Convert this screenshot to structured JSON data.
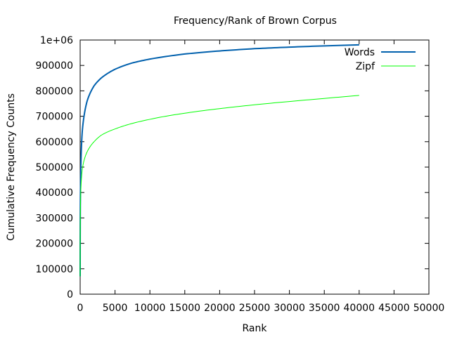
{
  "chart_data": {
    "type": "line",
    "title": "Frequency/Rank of Brown Corpus",
    "xlabel": "Rank",
    "ylabel": "Cumulative Frequency Counts",
    "xlim": [
      0,
      50000
    ],
    "ylim": [
      0,
      1000000
    ],
    "xticks": [
      "0",
      "5000",
      "10000",
      "15000",
      "20000",
      "25000",
      "30000",
      "35000",
      "40000",
      "45000",
      "50000"
    ],
    "yticks": [
      "0",
      "100000",
      "200000",
      "300000",
      "400000",
      "500000",
      "600000",
      "700000",
      "800000",
      "900000",
      "1e+06"
    ],
    "xtick_values": [
      0,
      5000,
      10000,
      15000,
      20000,
      25000,
      30000,
      35000,
      40000,
      45000,
      50000
    ],
    "ytick_values": [
      0,
      100000,
      200000,
      300000,
      400000,
      500000,
      600000,
      700000,
      800000,
      900000,
      1000000
    ],
    "grid": false,
    "legend_position": "top-right",
    "series": [
      {
        "name": "Words",
        "color": "#0060ad",
        "x": [
          1,
          10,
          50,
          100,
          200,
          300,
          500,
          1000,
          2000,
          3000,
          5000,
          7500,
          10000,
          15000,
          20000,
          25000,
          30000,
          35000,
          40000
        ],
        "y": [
          70000,
          250000,
          420000,
          500000,
          590000,
          640000,
          690000,
          760000,
          820000,
          850000,
          885000,
          910000,
          925000,
          945000,
          957000,
          966000,
          972000,
          977000,
          981000
        ]
      },
      {
        "name": "Zipf",
        "color": "#00ff00",
        "x": [
          1,
          10,
          50,
          100,
          200,
          300,
          500,
          1000,
          2000,
          3000,
          5000,
          7500,
          10000,
          15000,
          20000,
          25000,
          30000,
          35000,
          40000
        ],
        "y": [
          70000,
          230000,
          350000,
          410000,
          460000,
          490000,
          520000,
          560000,
          600000,
          625000,
          650000,
          672000,
          688000,
          712000,
          730000,
          745000,
          758000,
          770000,
          782000
        ]
      }
    ]
  }
}
